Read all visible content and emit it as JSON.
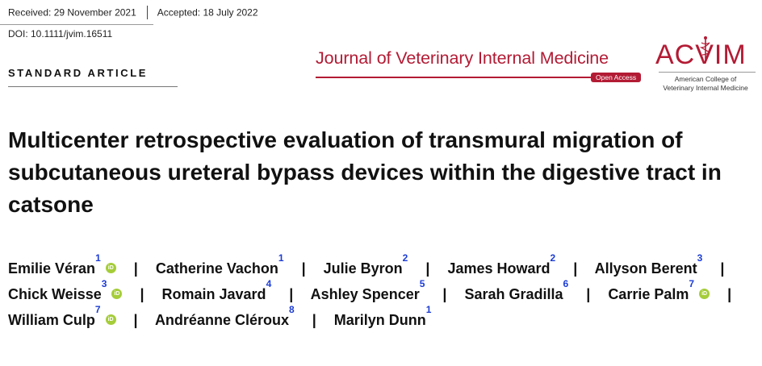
{
  "header": {
    "received": "Received: 29 November 2021",
    "accepted": "Accepted: 18 July 2022",
    "doi": "DOI: 10.1111/jvim.16511",
    "section": "STANDARD ARTICLE"
  },
  "journal": {
    "title": "Journal of Veterinary Internal Medicine",
    "open_access": "Open Access",
    "logo_text": "ACVIM",
    "college_line1": "American College of",
    "college_line2": "Veterinary Internal Medicine",
    "brand_color": "#b31b34"
  },
  "article": {
    "title": "Multicenter retrospective evaluation of transmural migration of subcutaneous ureteral bypass devices within the digestive tract in catsone"
  },
  "authors": [
    {
      "name": "Emilie Véran",
      "aff": "1",
      "orcid": true
    },
    {
      "name": "Catherine Vachon",
      "aff": "1",
      "orcid": false
    },
    {
      "name": "Julie Byron",
      "aff": "2",
      "orcid": false
    },
    {
      "name": "James Howard",
      "aff": "2",
      "orcid": false
    },
    {
      "name": "Allyson Berent",
      "aff": "3",
      "orcid": false
    },
    {
      "name": "Chick Weisse",
      "aff": "3",
      "orcid": true
    },
    {
      "name": "Romain Javard",
      "aff": "4",
      "orcid": false
    },
    {
      "name": "Ashley Spencer",
      "aff": "5",
      "orcid": false
    },
    {
      "name": "Sarah Gradilla",
      "aff": "6",
      "orcid": false
    },
    {
      "name": "Carrie Palm",
      "aff": "7",
      "orcid": true
    },
    {
      "name": "William Culp",
      "aff": "7",
      "orcid": true
    },
    {
      "name": "Andréanne Cléroux",
      "aff": "8",
      "orcid": false
    },
    {
      "name": "Marilyn Dunn",
      "aff": "1",
      "orcid": false
    }
  ],
  "orcid_label": "iD",
  "separator": "|"
}
